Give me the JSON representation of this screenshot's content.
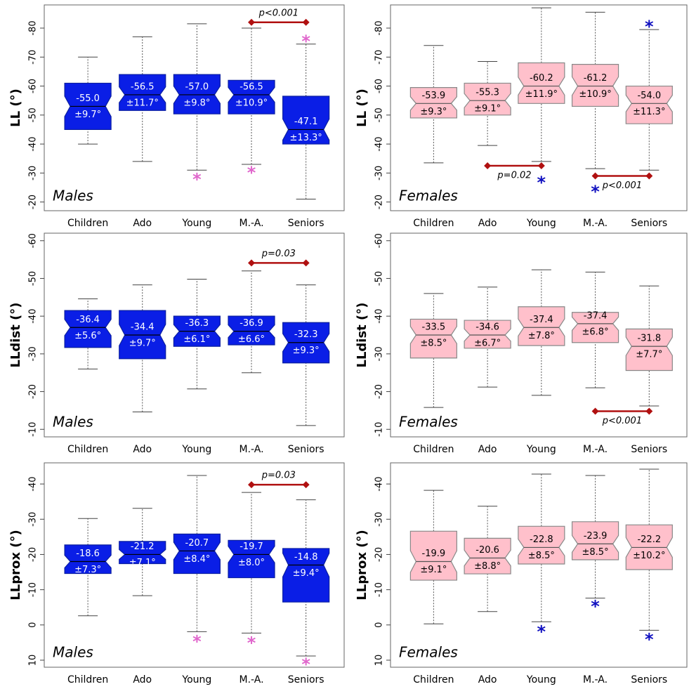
{
  "chart_data": [
    {
      "type": "box",
      "ylabel": "LL (°)",
      "annotation": "Males",
      "categories": [
        "Children",
        "Ado",
        "Young",
        "M.-A.",
        "Seniors"
      ],
      "whisker_low": [
        -40,
        -34,
        -31,
        -33,
        -21
      ],
      "q1": [
        -45,
        -51.6,
        -50.4,
        -50.4,
        -40
      ],
      "median": [
        -53,
        -57,
        -57,
        -57,
        -45
      ],
      "q3": [
        -61,
        -64,
        -64,
        -62,
        -56.5
      ],
      "whisker_high": [
        -70,
        -77,
        -81.5,
        -80,
        -74.5
      ],
      "labels": [
        [
          "-55.0",
          "±9.7°"
        ],
        [
          "-56.5",
          "±11.7°"
        ],
        [
          "-57.0",
          "±9.8°"
        ],
        [
          "-56.5",
          "±10.9°"
        ],
        [
          "-47.1",
          "±13.3°"
        ]
      ],
      "outliers": [
        null,
        null,
        -28.8,
        -31,
        -76.4
      ],
      "outlier_color": "#e066cc",
      "comparisons": [
        {
          "categories": [
            3,
            4
          ],
          "y": -82,
          "label": "p<0.001"
        }
      ],
      "comparison_color": "#b01010",
      "box_color": "#0a1ee6",
      "edge_color": "#0a1ea0",
      "label_color": "#ffffff",
      "ylim": [
        -17,
        -88
      ],
      "yticks": [
        -80,
        -70,
        -60,
        -50,
        -40,
        -30,
        -20
      ]
    },
    {
      "type": "box",
      "ylabel": "LL (°)",
      "annotation": "Females",
      "categories": [
        "Children",
        "Ado",
        "Young",
        "M.-A.",
        "Seniors"
      ],
      "whisker_low": [
        -33.5,
        -39.5,
        -34,
        -31.5,
        -31
      ],
      "q1": [
        -49,
        -50,
        -54,
        -53,
        -47
      ],
      "median": [
        -54,
        -55,
        -60,
        -60,
        -54
      ],
      "q3": [
        -59.5,
        -61,
        -68,
        -67.5,
        -60
      ],
      "whisker_high": [
        -74,
        -68.5,
        -87,
        -85.5,
        -79.5
      ],
      "labels": [
        [
          "-53.9",
          "±9.3°"
        ],
        [
          "-55.3",
          "±9.1°"
        ],
        [
          "-60.2",
          "±11.9°"
        ],
        [
          "-61.2",
          "±10.9°"
        ],
        [
          "-54.0",
          "±11.3°"
        ]
      ],
      "outliers": [
        null,
        null,
        -27.7,
        -24.5,
        -81.5
      ],
      "outlier_color": "#1010c0",
      "comparisons": [
        {
          "categories": [
            1,
            2
          ],
          "y": -32.5,
          "label": "p=0.02"
        },
        {
          "categories": [
            3,
            4
          ],
          "y": -29,
          "label": "p<0.001"
        }
      ],
      "comparison_color": "#b01010",
      "box_color": "#ffc0cb",
      "edge_color": "#888888",
      "label_color": "#000000",
      "ylim": [
        -17,
        -88
      ],
      "yticks": [
        -80,
        -70,
        -60,
        -50,
        -40,
        -30,
        -20
      ]
    },
    {
      "type": "box",
      "ylabel": "LLdist (°)",
      "annotation": "Males",
      "categories": [
        "Children",
        "Ado",
        "Young",
        "M.-A.",
        "Seniors"
      ],
      "whisker_low": [
        -26,
        -14.6,
        -20.7,
        -25,
        -11
      ],
      "q1": [
        -31.7,
        -28.7,
        -32,
        -32.4,
        -27.6
      ],
      "median": [
        -37,
        -35,
        -36,
        -36,
        -33
      ],
      "q3": [
        -41.5,
        -41.5,
        -40,
        -40,
        -38.3
      ],
      "whisker_high": [
        -44.6,
        -48.3,
        -49.8,
        -52,
        -48.3
      ],
      "labels": [
        [
          "-36.4",
          "±5.6°"
        ],
        [
          "-34.4",
          "±9.7°"
        ],
        [
          "-36.3",
          "±6.1°"
        ],
        [
          "-36.9",
          "±6.6°"
        ],
        [
          "-32.3",
          "±9.3°"
        ]
      ],
      "outliers": [
        null,
        null,
        null,
        null,
        null
      ],
      "outlier_color": "#e066cc",
      "comparisons": [
        {
          "categories": [
            3,
            4
          ],
          "y": -54.1,
          "label": "p=0.03"
        }
      ],
      "comparison_color": "#b01010",
      "box_color": "#0a1ee6",
      "edge_color": "#0a1ea0",
      "label_color": "#ffffff",
      "ylim": [
        -8,
        -62
      ],
      "yticks": [
        -60,
        -50,
        -40,
        -30,
        -20,
        -10
      ]
    },
    {
      "type": "box",
      "ylabel": "LLdist (°)",
      "annotation": "Females",
      "categories": [
        "Children",
        "Ado",
        "Young",
        "M.-A.",
        "Seniors"
      ],
      "whisker_low": [
        -15.8,
        -21.2,
        -19,
        -21,
        -16.2
      ],
      "q1": [
        -28.9,
        -31.5,
        -32.2,
        -33,
        -25.6
      ],
      "median": [
        -35,
        -35,
        -37,
        -38,
        -32
      ],
      "q3": [
        -39.2,
        -38.9,
        -42.5,
        -41,
        -36.6
      ],
      "whisker_high": [
        -46,
        -47.7,
        -52.3,
        -51.7,
        -48
      ],
      "labels": [
        [
          "-33.5",
          "±8.5°"
        ],
        [
          "-34.6",
          "±6.7°"
        ],
        [
          "-37.4",
          "±7.8°"
        ],
        [
          "-37.4",
          "±6.8°"
        ],
        [
          "-31.8",
          "±7.7°"
        ]
      ],
      "outliers": [
        null,
        null,
        null,
        null,
        null
      ],
      "outlier_color": "#1010c0",
      "comparisons": [
        {
          "categories": [
            3,
            4
          ],
          "y": -14.8,
          "label": "p<0.001"
        }
      ],
      "comparison_color": "#b01010",
      "box_color": "#ffc0cb",
      "edge_color": "#888888",
      "label_color": "#000000",
      "ylim": [
        -8,
        -62
      ],
      "yticks": [
        -60,
        -50,
        -40,
        -30,
        -20,
        -10
      ]
    },
    {
      "type": "box",
      "ylabel": "LLprox (°)",
      "annotation": "Males",
      "categories": [
        "Children",
        "Ado",
        "Young",
        "M.-A.",
        "Seniors"
      ],
      "whisker_low": [
        -2.6,
        -8.3,
        1.9,
        2.3,
        8.8
      ],
      "q1": [
        -14.6,
        -17.4,
        -14.6,
        -13.4,
        -6.5
      ],
      "median": [
        -18,
        -20,
        -21,
        -20,
        -17
      ],
      "q3": [
        -22.7,
        -23.7,
        -25.8,
        -24,
        -21.7
      ],
      "whisker_high": [
        -30.2,
        -33.1,
        -42.4,
        -37.6,
        -35.5
      ],
      "labels": [
        [
          "-18.6",
          "±7.3°"
        ],
        [
          "-21.2",
          "±7.1°"
        ],
        [
          "-20.7",
          "±8.4°"
        ],
        [
          "-19.7",
          "±8.0°"
        ],
        [
          "-14.8",
          "±9.4°"
        ]
      ],
      "outliers": [
        null,
        null,
        3.9,
        4.3,
        10.4
      ],
      "outlier_color": "#e066cc",
      "comparisons": [
        {
          "categories": [
            3,
            4
          ],
          "y": -39.8,
          "label": "p=0.03"
        }
      ],
      "comparison_color": "#b01010",
      "box_color": "#0a1ee6",
      "edge_color": "#0a1ea0",
      "label_color": "#ffffff",
      "ylim": [
        12,
        -46
      ],
      "yticks": [
        -40,
        -30,
        -20,
        -10,
        0,
        10
      ]
    },
    {
      "type": "box",
      "ylabel": "LLprox (°)",
      "annotation": "Females",
      "categories": [
        "Children",
        "Ado",
        "Young",
        "M.-A.",
        "Seniors"
      ],
      "whisker_low": [
        -0.3,
        -3.8,
        -0.9,
        -7.6,
        1.5
      ],
      "q1": [
        -12.7,
        -14.5,
        -17.3,
        -18.5,
        -15.7
      ],
      "median": [
        -18,
        -19,
        -22,
        -23,
        -22
      ],
      "q3": [
        -26.6,
        -24.6,
        -28,
        -29.3,
        -28.4
      ],
      "whisker_high": [
        -38.2,
        -33.7,
        -42.8,
        -42.4,
        -44.2
      ],
      "labels": [
        [
          "-19.9",
          "±9.1°"
        ],
        [
          "-20.6",
          "±8.8°"
        ],
        [
          "-22.8",
          "±8.5°"
        ],
        [
          "-23.9",
          "±8.5°"
        ],
        [
          "-22.2",
          "±10.2°"
        ]
      ],
      "outliers": [
        null,
        null,
        1.1,
        -6,
        3.3
      ],
      "outlier_color": "#1010c0",
      "comparisons": [],
      "comparison_color": "#b01010",
      "box_color": "#ffc0cb",
      "edge_color": "#888888",
      "label_color": "#000000",
      "ylim": [
        12,
        -46
      ],
      "yticks": [
        -40,
        -30,
        -20,
        -10,
        0,
        10
      ]
    }
  ]
}
